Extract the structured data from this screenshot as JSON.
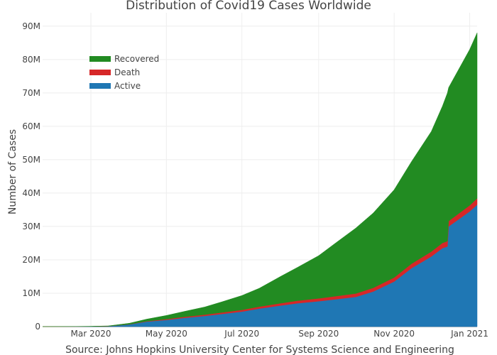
{
  "chart_data": {
    "type": "area",
    "stacked": true,
    "title": "Distribution of Covid19 Cases Worldwide",
    "xlabel": "Source: Johns Hopkins University Center for Systems Science and Engineering",
    "ylabel": "Number of Cases",
    "ylim": [
      0,
      94000000
    ],
    "xlim": [
      "2020-01-22",
      "2021-01-07"
    ],
    "grid": true,
    "legend_position": "top-left",
    "x_ticks": [
      {
        "date": "2020-03-01",
        "label": "Mar 2020"
      },
      {
        "date": "2020-05-01",
        "label": "May 2020"
      },
      {
        "date": "2020-07-01",
        "label": "Jul 2020"
      },
      {
        "date": "2020-09-01",
        "label": "Sep 2020"
      },
      {
        "date": "2020-11-01",
        "label": "Nov 2020"
      },
      {
        "date": "2021-01-01",
        "label": "Jan 2021"
      }
    ],
    "y_ticks": [
      {
        "value": 0,
        "label": "0"
      },
      {
        "value": 10000000,
        "label": "10M"
      },
      {
        "value": 20000000,
        "label": "20M"
      },
      {
        "value": 30000000,
        "label": "30M"
      },
      {
        "value": 40000000,
        "label": "40M"
      },
      {
        "value": 50000000,
        "label": "50M"
      },
      {
        "value": 60000000,
        "label": "60M"
      },
      {
        "value": 70000000,
        "label": "70M"
      },
      {
        "value": 80000000,
        "label": "80M"
      },
      {
        "value": 90000000,
        "label": "90M"
      }
    ],
    "x": [
      "2020-01-22",
      "2020-02-15",
      "2020-03-01",
      "2020-03-15",
      "2020-04-01",
      "2020-04-15",
      "2020-05-01",
      "2020-05-15",
      "2020-06-01",
      "2020-06-15",
      "2020-07-01",
      "2020-07-15",
      "2020-08-01",
      "2020-08-15",
      "2020-09-01",
      "2020-09-15",
      "2020-10-01",
      "2020-10-15",
      "2020-11-01",
      "2020-11-15",
      "2020-12-01",
      "2020-12-10",
      "2020-12-14",
      "2020-12-15",
      "2021-01-01",
      "2021-01-07"
    ],
    "series": [
      {
        "name": "Active",
        "color": "#1f77b4",
        "values": [
          0,
          0.03,
          0.05,
          0.12,
          0.65,
          1.5,
          2.0,
          2.6,
          3.2,
          3.8,
          4.5,
          5.4,
          6.3,
          7.0,
          7.6,
          8.2,
          8.9,
          10.5,
          13.5,
          17.5,
          21.0,
          23.5,
          24.0,
          30.0,
          34.5,
          36.5
        ]
      },
      {
        "name": "Death",
        "color": "#d62728",
        "values": [
          0,
          0,
          0,
          0.01,
          0.05,
          0.13,
          0.24,
          0.31,
          0.38,
          0.44,
          0.51,
          0.58,
          0.68,
          0.77,
          0.85,
          0.93,
          1.01,
          1.1,
          1.2,
          1.33,
          1.46,
          1.56,
          1.6,
          1.62,
          1.82,
          1.9
        ]
      },
      {
        "name": "Recovered",
        "color": "#228b22",
        "values": [
          0,
          0.01,
          0.05,
          0.08,
          0.3,
          0.6,
          1.1,
          1.6,
          2.3,
          3.2,
          4.3,
          5.5,
          8.0,
          10.0,
          12.8,
          16.0,
          19.6,
          22.4,
          26.3,
          30.6,
          36.0,
          41.0,
          44.4,
          40.0,
          46.7,
          49.6
        ]
      }
    ],
    "value_unit": "millions"
  }
}
